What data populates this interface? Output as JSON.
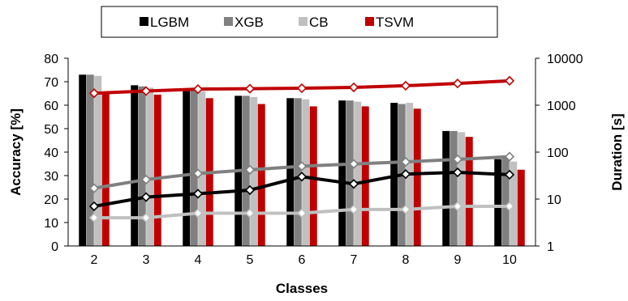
{
  "chart_data": {
    "type": "bar",
    "categories": [
      "2",
      "3",
      "4",
      "5",
      "6",
      "7",
      "8",
      "9",
      "10"
    ],
    "xlabel": "Classes",
    "ylabel": "Accuracy [%]",
    "y2label": "Duration [s]",
    "ylim": [
      0,
      80
    ],
    "y2lim": [
      1,
      10000
    ],
    "y2scale": "log",
    "yticks": [
      "0",
      "10",
      "20",
      "30",
      "40",
      "50",
      "60",
      "70",
      "80"
    ],
    "y2ticks": [
      "1",
      "10",
      "100",
      "1000",
      "10000"
    ],
    "legend_position": "top",
    "bar_series": [
      {
        "name": "LGBM",
        "color": "#000000",
        "values": [
          73,
          68.5,
          66,
          64,
          63,
          62,
          61,
          49,
          37
        ]
      },
      {
        "name": "XGB",
        "color": "#808080",
        "values": [
          73,
          68,
          66.5,
          64,
          63,
          62,
          60.5,
          49,
          37.5
        ]
      },
      {
        "name": "CB",
        "color": "#c0c0c0",
        "values": [
          72.5,
          67.5,
          66,
          63.5,
          62.5,
          61.5,
          61,
          48.5,
          36
        ]
      },
      {
        "name": "TSVM",
        "color": "#c00000",
        "values": [
          65,
          64.5,
          63,
          60.5,
          59.5,
          59.5,
          58.5,
          46.5,
          32.5
        ]
      }
    ],
    "line_series": [
      {
        "name": "TSVM",
        "color": "#c00000",
        "marker_fill": "#ffffff",
        "values": [
          1800,
          2000,
          2200,
          2250,
          2300,
          2400,
          2600,
          2900,
          3300
        ]
      },
      {
        "name": "XGB",
        "color": "#808080",
        "marker_fill": "#ffffff",
        "values": [
          17,
          26,
          35,
          42,
          50,
          56,
          62,
          70,
          80
        ]
      },
      {
        "name": "LGBM",
        "color": "#000000",
        "marker_fill": "#ffffff",
        "values": [
          7,
          11,
          13,
          15.5,
          30,
          21,
          34,
          37,
          33
        ]
      },
      {
        "name": "CB",
        "color": "#c0c0c0",
        "marker_fill": "#ffffff",
        "values": [
          4,
          4,
          5,
          5,
          5,
          6,
          6,
          7,
          7
        ]
      }
    ]
  }
}
